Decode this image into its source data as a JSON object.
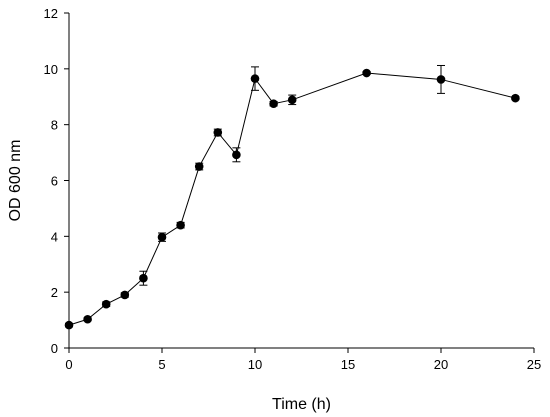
{
  "chart_data": {
    "type": "line",
    "title": "",
    "xlabel": "Time (h)",
    "ylabel": "OD 600 nm",
    "xlim": [
      0,
      25
    ],
    "ylim": [
      0,
      12
    ],
    "xticks": [
      0,
      5,
      10,
      15,
      20,
      25
    ],
    "yticks": [
      0,
      2,
      4,
      6,
      8,
      10,
      12
    ],
    "grid": false,
    "legend": "none",
    "series": [
      {
        "marker": "filled-circle",
        "color": "#000000",
        "x": [
          0,
          1,
          2,
          3,
          4,
          5,
          6,
          7,
          8,
          9,
          10,
          11,
          12,
          16,
          20,
          24
        ],
        "y": [
          0.82,
          1.03,
          1.57,
          1.9,
          2.5,
          3.97,
          4.4,
          6.5,
          7.72,
          6.92,
          9.65,
          8.75,
          8.89,
          9.85,
          9.62,
          8.95
        ],
        "error": [
          0.06,
          0.05,
          0.08,
          0.08,
          0.25,
          0.15,
          0.1,
          0.12,
          0.12,
          0.25,
          0.42,
          0.08,
          0.17,
          0.05,
          0.5,
          0.05
        ]
      }
    ]
  }
}
